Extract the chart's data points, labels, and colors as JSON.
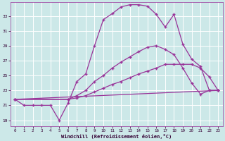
{
  "background_color": "#cce8e8",
  "grid_color": "#ffffff",
  "line_color": "#993399",
  "xlabel": "Windchill (Refroidissement éolien,°C)",
  "ylabel_ticks": [
    19,
    21,
    23,
    25,
    27,
    29,
    31,
    33
  ],
  "xlim": [
    -0.5,
    23.5
  ],
  "ylim": [
    18.2,
    34.8
  ],
  "xticks": [
    0,
    1,
    2,
    3,
    4,
    5,
    6,
    7,
    8,
    9,
    10,
    11,
    12,
    13,
    14,
    15,
    16,
    17,
    18,
    19,
    20,
    21,
    22,
    23
  ],
  "curve1_x": [
    0,
    1,
    2,
    3,
    4,
    5,
    6,
    7,
    8,
    9,
    10,
    11,
    12,
    13,
    14,
    15,
    16,
    17,
    18,
    19,
    20,
    21,
    22,
    23
  ],
  "curve1_y": [
    21.8,
    21.0,
    21.0,
    21.0,
    21.0,
    19.0,
    21.3,
    24.2,
    25.2,
    29.0,
    32.5,
    33.3,
    34.2,
    34.5,
    34.5,
    34.3,
    33.2,
    31.5,
    33.2,
    29.2,
    27.2,
    26.2,
    23.0,
    23.0
  ],
  "curve2_x": [
    0,
    6,
    7,
    8,
    9,
    10,
    11,
    12,
    13,
    14,
    15,
    16,
    17,
    18,
    19,
    20,
    21,
    22,
    23
  ],
  "curve2_y": [
    21.8,
    21.8,
    22.3,
    23.0,
    24.2,
    25.0,
    26.0,
    26.8,
    27.5,
    28.2,
    28.8,
    29.0,
    28.5,
    27.8,
    26.0,
    24.0,
    22.5,
    23.0,
    23.0
  ],
  "curve3_x": [
    0,
    6,
    7,
    8,
    9,
    10,
    11,
    12,
    13,
    14,
    15,
    16,
    17,
    18,
    19,
    20,
    21,
    22,
    23
  ],
  "curve3_y": [
    21.8,
    21.8,
    22.0,
    22.3,
    22.8,
    23.3,
    23.8,
    24.2,
    24.7,
    25.2,
    25.6,
    26.0,
    26.5,
    26.5,
    26.5,
    26.5,
    26.0,
    24.8,
    23.0
  ],
  "curve4_x": [
    0,
    23
  ],
  "curve4_y": [
    21.8,
    23.0
  ]
}
